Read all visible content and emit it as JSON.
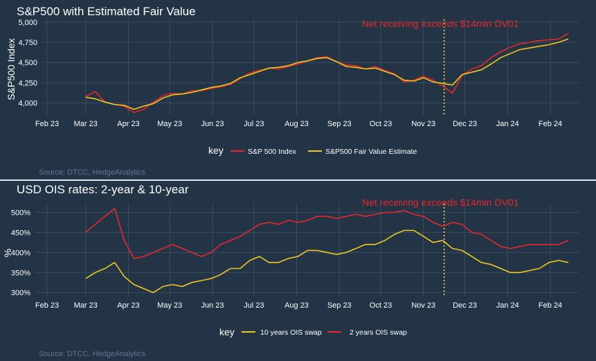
{
  "chart_data": [
    {
      "type": "line",
      "title": "S&P500 with Estimated Fair Value",
      "xlabel": "",
      "ylabel": "S&P500 Index",
      "x_ticks": [
        "Feb 23",
        "Mar 23",
        "Apr 23",
        "May 23",
        "Jun 23",
        "Jul 23",
        "Aug 23",
        "Sep 23",
        "Oct 23",
        "Nov 23",
        "Dec 23",
        "Jan 24",
        "Feb 24"
      ],
      "y_ticks": [
        "4,000",
        "4,250",
        "4,500",
        "4,750",
        "5,000"
      ],
      "ylim": [
        3850,
        5050
      ],
      "grid": true,
      "legend_title": "key",
      "legend_position": "bottom",
      "annotation": {
        "text": "Net receiving exceeds $14mln DV01",
        "x": "2023-11-16",
        "line_color": "#f0e22a"
      },
      "source": "Source: DTCC, HedgeAnalytics",
      "x": [
        "2023-03-01",
        "2023-03-08",
        "2023-03-15",
        "2023-03-22",
        "2023-03-29",
        "2023-04-05",
        "2023-04-12",
        "2023-04-19",
        "2023-04-26",
        "2023-05-03",
        "2023-05-10",
        "2023-05-17",
        "2023-05-24",
        "2023-05-31",
        "2023-06-07",
        "2023-06-14",
        "2023-06-21",
        "2023-06-28",
        "2023-07-05",
        "2023-07-12",
        "2023-07-19",
        "2023-07-26",
        "2023-08-02",
        "2023-08-09",
        "2023-08-16",
        "2023-08-23",
        "2023-08-30",
        "2023-09-06",
        "2023-09-13",
        "2023-09-20",
        "2023-09-27",
        "2023-10-04",
        "2023-10-11",
        "2023-10-18",
        "2023-10-25",
        "2023-11-01",
        "2023-11-08",
        "2023-11-15",
        "2023-11-22",
        "2023-11-29",
        "2023-12-06",
        "2023-12-13",
        "2023-12-20",
        "2023-12-27",
        "2024-01-03",
        "2024-01-10",
        "2024-01-17",
        "2024-01-24",
        "2024-01-31",
        "2024-02-07",
        "2024-02-14"
      ],
      "series": [
        {
          "name": "S&P 500 Index",
          "color": "#e8272b",
          "values": [
            4080,
            4140,
            4010,
            3980,
            3960,
            3880,
            3920,
            4010,
            4090,
            4120,
            4110,
            4150,
            4150,
            4180,
            4200,
            4230,
            4300,
            4370,
            4400,
            4430,
            4420,
            4450,
            4480,
            4520,
            4560,
            4570,
            4510,
            4470,
            4460,
            4420,
            4450,
            4400,
            4360,
            4260,
            4280,
            4330,
            4280,
            4210,
            4120,
            4340,
            4420,
            4460,
            4560,
            4630,
            4690,
            4730,
            4750,
            4770,
            4780,
            4790,
            4860
          ]
        },
        {
          "name": "S&P500 Fair Value Estimate",
          "color": "#f0c81e",
          "values": [
            4070,
            4050,
            4010,
            3980,
            3970,
            3920,
            3960,
            3990,
            4060,
            4100,
            4110,
            4130,
            4160,
            4190,
            4210,
            4240,
            4310,
            4350,
            4390,
            4430,
            4440,
            4460,
            4500,
            4520,
            4550,
            4560,
            4510,
            4450,
            4440,
            4420,
            4430,
            4390,
            4350,
            4280,
            4270,
            4310,
            4260,
            4240,
            4220,
            4350,
            4380,
            4410,
            4480,
            4560,
            4610,
            4660,
            4680,
            4700,
            4720,
            4750,
            4790
          ]
        }
      ]
    },
    {
      "type": "line",
      "title": "USD OIS rates: 2-year & 10-year",
      "xlabel": "",
      "ylabel": "%",
      "x_ticks": [
        "Feb 23",
        "Mar 23",
        "Apr 23",
        "May 23",
        "Jun 23",
        "Jul 23",
        "Aug 23",
        "Sep 23",
        "Oct 23",
        "Nov 23",
        "Dec 23",
        "Jan 24",
        "Feb 24"
      ],
      "y_ticks": [
        "300%",
        "350%",
        "400%",
        "450%",
        "500%"
      ],
      "ylim": [
        290,
        525
      ],
      "grid": true,
      "legend_title": "key",
      "legend_position": "bottom",
      "annotation": {
        "text": "Net receiving exceeds $14mln DV01",
        "x": "2023-11-16",
        "line_color": "#f0e22a"
      },
      "source": "Source: DTCC, HedgeAnalytics",
      "x": [
        "2023-03-01",
        "2023-03-08",
        "2023-03-15",
        "2023-03-22",
        "2023-03-29",
        "2023-04-05",
        "2023-04-12",
        "2023-04-19",
        "2023-04-26",
        "2023-05-03",
        "2023-05-10",
        "2023-05-17",
        "2023-05-24",
        "2023-05-31",
        "2023-06-07",
        "2023-06-14",
        "2023-06-21",
        "2023-06-28",
        "2023-07-05",
        "2023-07-12",
        "2023-07-19",
        "2023-07-26",
        "2023-08-02",
        "2023-08-09",
        "2023-08-16",
        "2023-08-23",
        "2023-08-30",
        "2023-09-06",
        "2023-09-13",
        "2023-09-20",
        "2023-09-27",
        "2023-10-04",
        "2023-10-11",
        "2023-10-18",
        "2023-10-25",
        "2023-11-01",
        "2023-11-08",
        "2023-11-15",
        "2023-11-22",
        "2023-11-29",
        "2023-12-06",
        "2023-12-13",
        "2023-12-20",
        "2023-12-27",
        "2024-01-03",
        "2024-01-10",
        "2024-01-17",
        "2024-01-24",
        "2024-01-31",
        "2024-02-07",
        "2024-02-14"
      ],
      "series": [
        {
          "name": "10 years OIS swap",
          "color": "#f0c81e",
          "values": [
            335,
            350,
            360,
            375,
            340,
            320,
            310,
            300,
            315,
            320,
            315,
            325,
            330,
            335,
            345,
            360,
            360,
            380,
            390,
            375,
            375,
            385,
            390,
            405,
            405,
            400,
            395,
            400,
            410,
            420,
            420,
            430,
            445,
            455,
            455,
            440,
            425,
            430,
            410,
            405,
            390,
            375,
            370,
            360,
            350,
            350,
            355,
            360,
            375,
            380,
            375
          ]
        },
        {
          "name": "2 years OIS swap",
          "color": "#e8272b",
          "values": [
            450,
            470,
            490,
            510,
            430,
            385,
            390,
            400,
            410,
            420,
            410,
            400,
            390,
            400,
            420,
            430,
            440,
            455,
            470,
            475,
            470,
            480,
            475,
            480,
            490,
            490,
            485,
            490,
            495,
            490,
            495,
            500,
            500,
            505,
            495,
            490,
            475,
            465,
            475,
            470,
            450,
            445,
            430,
            415,
            410,
            415,
            420,
            420,
            420,
            420,
            430
          ]
        }
      ]
    }
  ]
}
